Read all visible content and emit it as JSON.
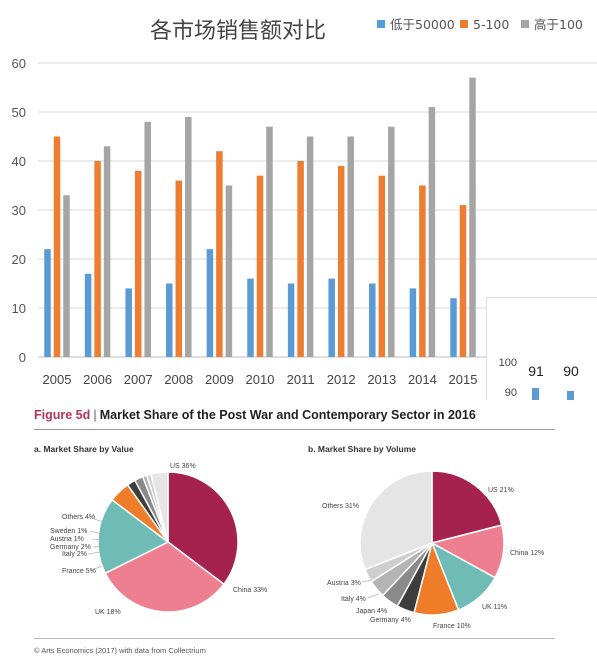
{
  "chart_data": [
    {
      "type": "bar",
      "title": "各市场销售额对比",
      "categories": [
        "2005",
        "2006",
        "2007",
        "2008",
        "2009",
        "2010",
        "2011",
        "2012",
        "2013",
        "2014",
        "2015"
      ],
      "series": [
        {
          "name": "低于50000",
          "color": "#5b9bd5",
          "values": [
            22,
            17,
            14,
            15,
            22,
            16,
            15,
            16,
            15,
            14,
            12
          ]
        },
        {
          "name": "5-100",
          "color": "#ed7d31",
          "values": [
            45,
            40,
            38,
            36,
            42,
            37,
            40,
            39,
            37,
            35,
            31
          ]
        },
        {
          "name": "高于100",
          "color": "#a5a5a5",
          "values": [
            33,
            43,
            48,
            49,
            35,
            47,
            45,
            45,
            47,
            51,
            57
          ]
        }
      ],
      "ylim": [
        0,
        60
      ],
      "yticks": [
        "0",
        "10",
        "20",
        "30",
        "40",
        "50",
        "60"
      ],
      "grid": true,
      "legend": "top-right"
    },
    {
      "type": "bar",
      "title": "",
      "fragment": true,
      "series": [
        {
          "name": "",
          "color": "#5b9bd5",
          "values": [
            91,
            90
          ]
        }
      ],
      "data_labels": [
        "91",
        "90"
      ],
      "yticks": [
        "100",
        "90"
      ]
    },
    {
      "type": "pie",
      "figure_number": "Figure 5d",
      "figure_title": "Market Share of the Post War and Contemporary Sector in 2016",
      "title": "a. Market Share by Value",
      "slices": [
        {
          "label": "US 36%",
          "value": 36,
          "color": "#a5214e"
        },
        {
          "label": "China 33%",
          "value": 33,
          "color": "#ee7f91"
        },
        {
          "label": "UK 18%",
          "value": 18,
          "color": "#6fbcb6"
        },
        {
          "label": "France 5%",
          "value": 5,
          "color": "#ee7c28"
        },
        {
          "label": "Italy 2%",
          "value": 2,
          "color": "#3d3d3d"
        },
        {
          "label": "Germany 2%",
          "value": 2,
          "color": "#8a8a8a"
        },
        {
          "label": "Austria 1%",
          "value": 1,
          "color": "#b4b4b4"
        },
        {
          "label": "Sweden 1%",
          "value": 1,
          "color": "#cfcfcf"
        },
        {
          "label": "Others 4%",
          "value": 4,
          "color": "#e5e5e5"
        }
      ]
    },
    {
      "type": "pie",
      "title": "b. Market Share by Volume",
      "slices": [
        {
          "label": "US 21%",
          "value": 21,
          "color": "#a5214e"
        },
        {
          "label": "China 12%",
          "value": 12,
          "color": "#ee7f91"
        },
        {
          "label": "UK 11%",
          "value": 11,
          "color": "#6fbcb6"
        },
        {
          "label": "France 10%",
          "value": 10,
          "color": "#ee7c28"
        },
        {
          "label": "Germany 4%",
          "value": 4,
          "color": "#3d3d3d"
        },
        {
          "label": "Japan 4%",
          "value": 4,
          "color": "#8a8a8a"
        },
        {
          "label": "Italy 4%",
          "value": 4,
          "color": "#b4b4b4"
        },
        {
          "label": "Austria 3%",
          "value": 3,
          "color": "#cfcfcf"
        },
        {
          "label": "Others 31%",
          "value": 31,
          "color": "#e5e5e5"
        }
      ],
      "source": "© Arts Economics (2017) with data from Collectrium"
    }
  ]
}
